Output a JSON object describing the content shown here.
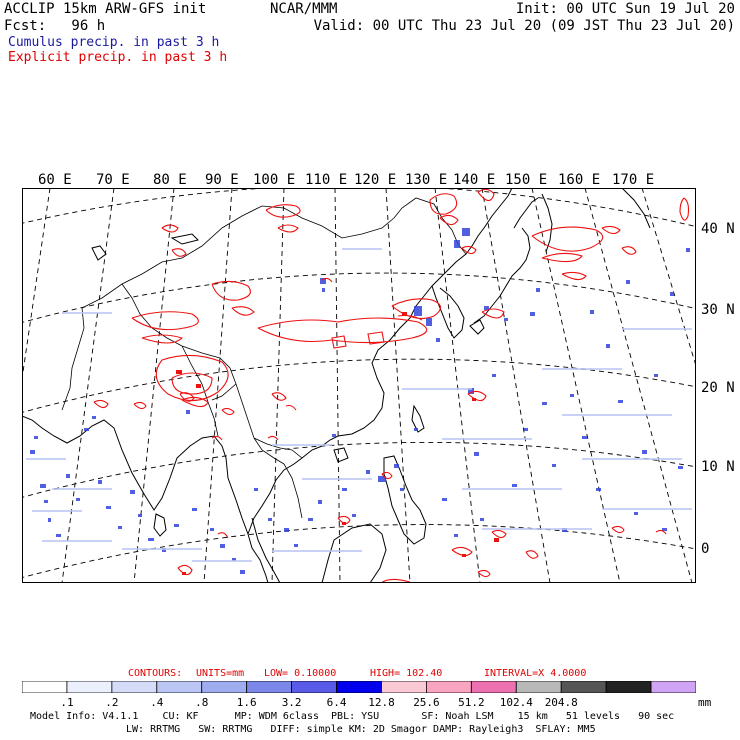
{
  "header": {
    "left_line1": "ACCLIP 15km ARW-GFS init",
    "left_line2": "Fcst:   96 h",
    "center": "NCAR/MMM",
    "init": "Init: 00 UTC Sun 19 Jul 20",
    "valid": "Valid: 00 UTC Thu 23 Jul 20 (09 JST Thu 23 Jul 20)",
    "legend_cumulus": "Cumulus precip. in past 3 h",
    "legend_explicit": "Explicit precip. in past 3 h"
  },
  "map": {
    "lon_labels": [
      "60 E",
      "70 E",
      "80 E",
      "90 E",
      "100 E",
      "110 E",
      "120 E",
      "130 E",
      "140 E",
      "150 E",
      "160 E",
      "170 E"
    ],
    "lat_labels": [
      "40 N",
      "30 N",
      "20 N",
      "10 N",
      "0"
    ],
    "colors": {
      "land_outline": "#000000",
      "cumulus": "#3344dd",
      "explicit": "#ee1111",
      "gridline": "#000000"
    }
  },
  "contours": {
    "label": "CONTOURS:",
    "units": "UNITS=mm",
    "low": "LOW= 0.10000",
    "high": "HIGH= 102.40",
    "interval": "INTERVAL=X 4.0000"
  },
  "colorbar": {
    "thresholds": [
      ".1",
      ".2",
      ".4",
      ".8",
      "1.6",
      "3.2",
      "6.4",
      "12.8",
      "25.6",
      "51.2",
      "102.4",
      "204.8"
    ],
    "unit": "mm",
    "colors": [
      "#ffffff",
      "#ecf0fc",
      "#d5dcf8",
      "#bcc6f4",
      "#a0acf0",
      "#7b88ea",
      "#5a5ae8",
      "#0000ee",
      "#f9c9d4",
      "#f9a4c0",
      "#ed70b0",
      "#b8b8b8",
      "#555555",
      "#222222",
      "#d0a4f4"
    ]
  },
  "footer": {
    "line1": "Model Info: V4.1.1    CU: KF      MP: WDM 6class  PBL: YSU       SF: Noah LSM    15 km   51 levels   90 sec",
    "line2": "LW: RRTMG   SW: RRTMG   DIFF: simple KM: 2D Smagor DAMP: Rayleigh3  SFLAY: MM5"
  }
}
